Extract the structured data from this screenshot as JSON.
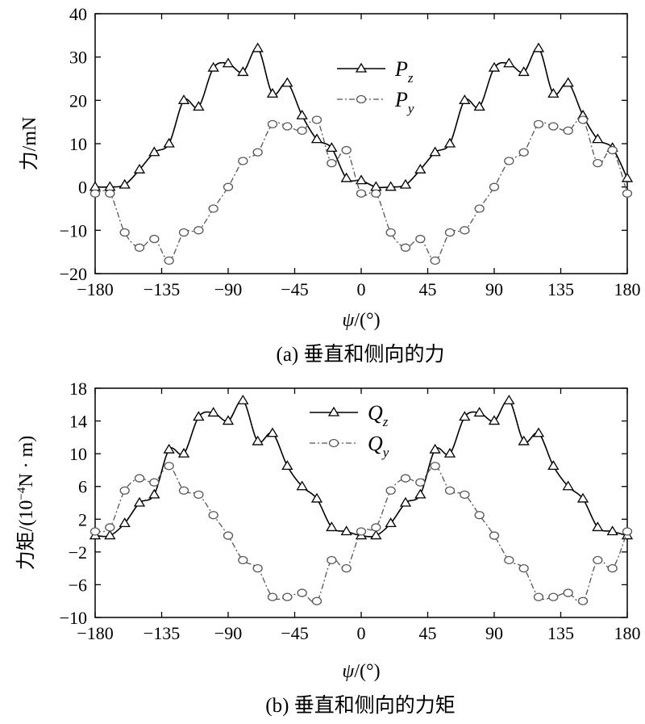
{
  "chart_data": [
    {
      "type": "line",
      "caption": "(a) 垂直和侧向的力",
      "xlabel_symbol": "ψ",
      "xlabel_unit": "/(°)",
      "ylabel": "力/mN",
      "xlim": [
        -180,
        180
      ],
      "ylim": [
        -20,
        40
      ],
      "xticks": [
        -180,
        -135,
        -90,
        -45,
        0,
        45,
        90,
        135,
        180
      ],
      "yticks": [
        -20,
        -10,
        0,
        10,
        20,
        30,
        40
      ],
      "legend_position": "top-center",
      "grid": false,
      "series": [
        {
          "name": "P",
          "subscript": "z",
          "marker": "triangle",
          "line_style": "solid",
          "color": "#000000",
          "x": [
            -180,
            -170,
            -160,
            -150,
            -140,
            -130,
            -120,
            -110,
            -100,
            -90,
            -80,
            -70,
            -60,
            -50,
            -40,
            -30,
            -20,
            -10,
            0,
            10,
            20,
            30,
            40,
            50,
            60,
            70,
            80,
            90,
            100,
            110,
            120,
            130,
            140,
            150,
            160,
            170,
            180
          ],
          "values": [
            0,
            0,
            0.5,
            4,
            8,
            10,
            20,
            18.5,
            27.5,
            28.5,
            26.5,
            32,
            21.5,
            24,
            16.5,
            11,
            9,
            2,
            1.5,
            0,
            0,
            0.5,
            4,
            8,
            10,
            20,
            18.5,
            27.5,
            28.5,
            26.5,
            32,
            21.5,
            24,
            16.5,
            11,
            9,
            2
          ]
        },
        {
          "name": "P",
          "subscript": "y",
          "marker": "circle",
          "line_style": "dash-dot",
          "color": "#000000",
          "x": [
            -180,
            -170,
            -160,
            -150,
            -140,
            -130,
            -120,
            -110,
            -100,
            -90,
            -80,
            -70,
            -60,
            -50,
            -40,
            -30,
            -20,
            -10,
            0,
            10,
            20,
            30,
            40,
            50,
            60,
            70,
            80,
            90,
            100,
            110,
            120,
            130,
            140,
            150,
            160,
            170,
            180
          ],
          "values": [
            -1.5,
            -1.5,
            -10.5,
            -14,
            -12,
            -17,
            -10.5,
            -10,
            -5,
            0,
            6,
            8,
            14.5,
            14,
            13,
            15.5,
            5.5,
            8.5,
            -1.5,
            -1.5,
            -10.5,
            -14,
            -12,
            -17,
            -10.5,
            -10,
            -5,
            0,
            6,
            8,
            14.5,
            14,
            13,
            15.5,
            5.5,
            8.5,
            -1.5
          ]
        }
      ]
    },
    {
      "type": "line",
      "caption": "(b) 垂直和侧向的力矩",
      "xlabel_symbol": "ψ",
      "xlabel_unit": "/(°)",
      "ylabel_main": "力矩/(10",
      "ylabel_sup": "−4",
      "ylabel_rest": "N · m)",
      "xlim": [
        -180,
        180
      ],
      "ylim": [
        -10,
        18
      ],
      "xticks": [
        -180,
        -135,
        -90,
        -45,
        0,
        45,
        90,
        135,
        180
      ],
      "yticks": [
        -10,
        -6,
        -2,
        2,
        6,
        10,
        14,
        18
      ],
      "legend_position": "top-center",
      "grid": false,
      "series": [
        {
          "name": "Q",
          "subscript": "z",
          "marker": "triangle",
          "line_style": "solid",
          "color": "#000000",
          "x": [
            -180,
            -170,
            -160,
            -150,
            -140,
            -130,
            -120,
            -110,
            -100,
            -90,
            -80,
            -70,
            -60,
            -50,
            -40,
            -30,
            -20,
            -10,
            0,
            10,
            20,
            30,
            40,
            50,
            60,
            70,
            80,
            90,
            100,
            110,
            120,
            130,
            140,
            150,
            160,
            170,
            180
          ],
          "values": [
            0,
            0,
            1.5,
            4,
            5,
            10.5,
            10,
            14.5,
            15,
            14,
            16.5,
            11.5,
            12.5,
            8.5,
            6,
            4.5,
            1,
            0.5,
            0,
            0,
            1.5,
            4,
            5,
            10.5,
            10,
            14.5,
            15,
            14,
            16.5,
            11.5,
            12.5,
            8.5,
            6,
            4.5,
            1,
            0.5,
            0
          ]
        },
        {
          "name": "Q",
          "subscript": "y",
          "marker": "circle",
          "line_style": "dash-dot",
          "color": "#000000",
          "x": [
            -180,
            -170,
            -160,
            -150,
            -140,
            -130,
            -120,
            -110,
            -100,
            -90,
            -80,
            -70,
            -60,
            -50,
            -40,
            -30,
            -20,
            -10,
            0,
            10,
            20,
            30,
            40,
            50,
            60,
            70,
            80,
            90,
            100,
            110,
            120,
            130,
            140,
            150,
            160,
            170,
            180
          ],
          "values": [
            0.5,
            1,
            5.5,
            7,
            6.5,
            8.5,
            5.5,
            5,
            2.5,
            0,
            -3,
            -4,
            -7.5,
            -7.5,
            -7,
            -8,
            -3,
            -4,
            0.5,
            1,
            5.5,
            7,
            6.5,
            8.5,
            5.5,
            5,
            2.5,
            0,
            -3,
            -4,
            -7.5,
            -7.5,
            -7,
            -8,
            -3,
            -4,
            0.5
          ]
        }
      ]
    }
  ]
}
